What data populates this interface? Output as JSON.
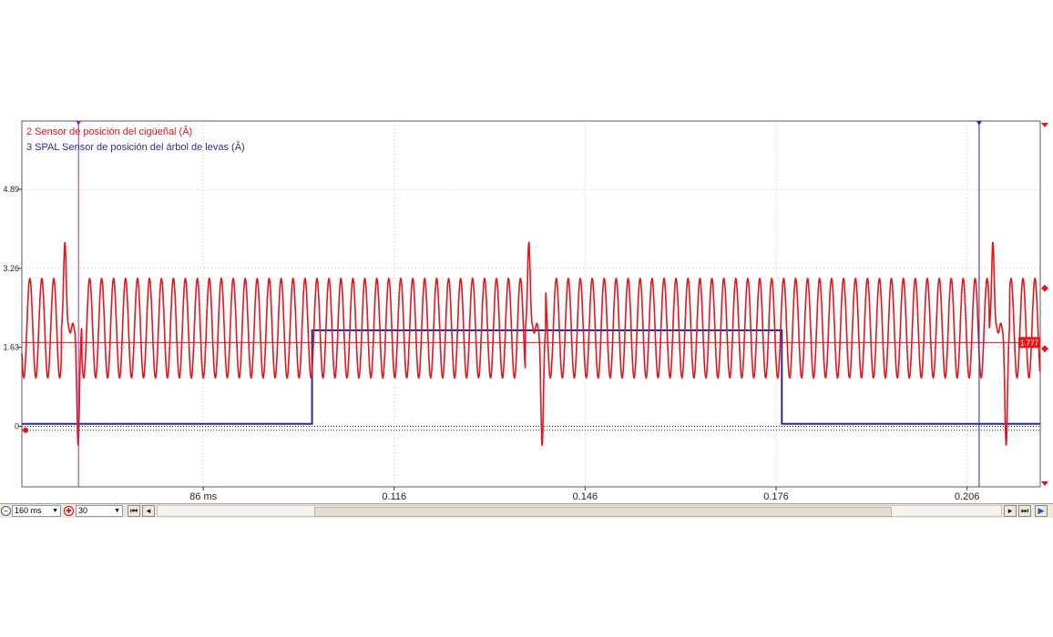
{
  "chart_data": {
    "type": "line",
    "title": "",
    "xlabel": "",
    "ylabel": "",
    "x_tick_labels": [
      "86 ms",
      "0.116",
      "0.146",
      "0.176",
      "0.206"
    ],
    "x_tick_values": [
      0.086,
      0.116,
      0.146,
      0.176,
      0.206
    ],
    "xlim": [
      0.0575,
      0.2175
    ],
    "y_tick_labels": [
      "4.89",
      "3.26",
      "1.63",
      "0"
    ],
    "y_tick_values": [
      4.89,
      3.26,
      1.63,
      0
    ],
    "ylim": [
      -1.25,
      6.3
    ],
    "grid": true,
    "legend_position": "top-left",
    "series": [
      {
        "name": "2 Sensor de posición del cigüeñal (Â)",
        "color": "#e8141c",
        "kind": "crank",
        "high": 3.05,
        "low": 1.0,
        "cycle_ms": 1.88,
        "gap_centers": [
          0.0653,
          0.1382,
          0.2111
        ],
        "peak_high": 3.8,
        "peak_low": -0.4
      },
      {
        "name": "3 SPAL Sensor de posición del árbol de levas (Â)",
        "color": "#2a2a9e",
        "kind": "step",
        "x": [
          0.0575,
          0.1031,
          0.1031,
          0.1769,
          0.1769,
          0.2175
        ],
        "y": [
          0.05,
          0.05,
          1.98,
          1.98,
          0.05,
          0.05
        ]
      }
    ],
    "reference_level": 1.73,
    "reference_label": "1.777",
    "cursors_x": [
      0.0664,
      0.2079
    ]
  },
  "toolbar": {
    "timebase": "160 ms",
    "zoom": "30"
  }
}
